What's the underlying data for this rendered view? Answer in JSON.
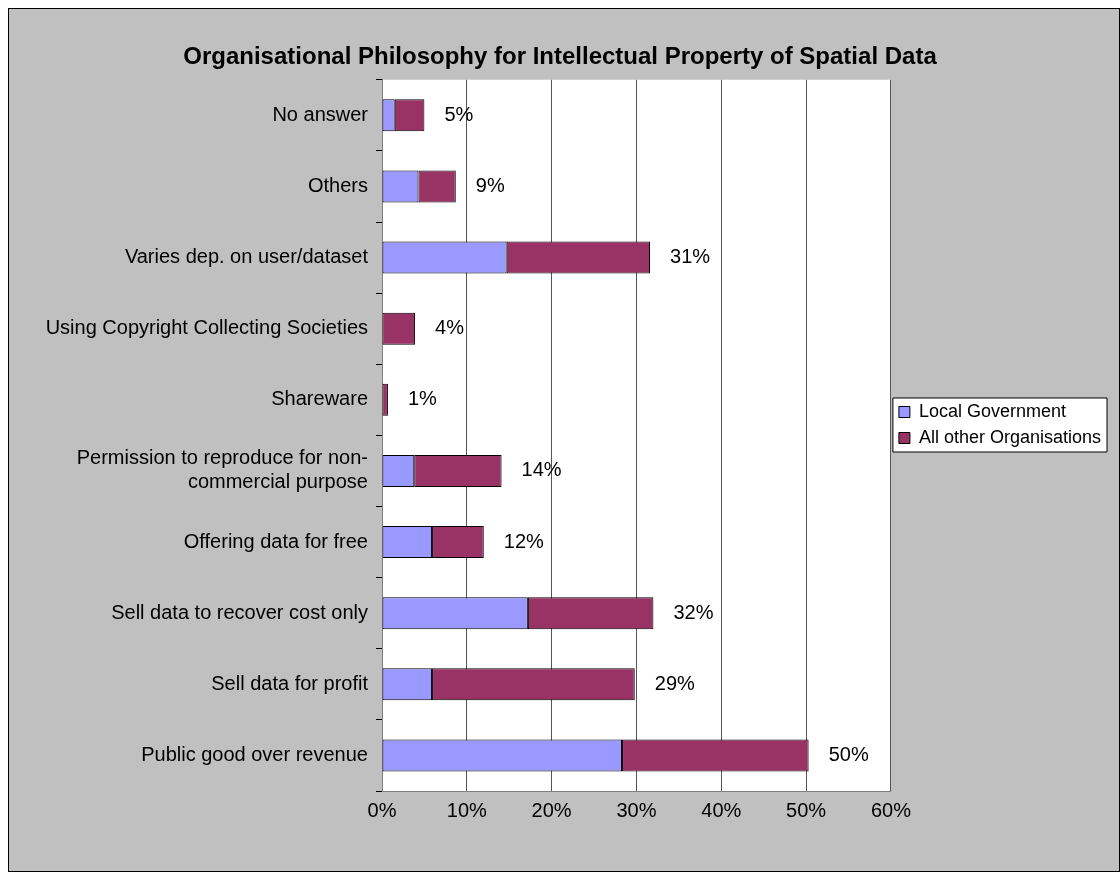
{
  "chart_data": {
    "type": "bar",
    "title": "Organisational Philosophy for Intellectual Property of Spatial Data",
    "orientation": "horizontal",
    "stacked": true,
    "categories": [
      "No answer",
      "Others",
      "Varies dep. on user/dataset",
      "Using Copyright Collecting Societies",
      "Shareware",
      "Permission to reproduce for non-commercial purpose",
      "Offering data for free",
      "Sell data to recover cost only",
      "Sell data for profit",
      "Public good over revenue"
    ],
    "series": [
      {
        "name": "Local Government",
        "color": "#9999ff",
        "values": [
          1.5,
          4.3,
          14.7,
          0,
          0,
          3.8,
          5.9,
          17.2,
          5.9,
          28.3
        ]
      },
      {
        "name": "All other Organisations",
        "color": "#993366",
        "values": [
          3.5,
          4.4,
          16.9,
          3.9,
          0.7,
          10.3,
          6.1,
          14.8,
          23.9,
          22
        ]
      }
    ],
    "totals": [
      "5%",
      "9%",
      "31%",
      "4%",
      "1%",
      "14%",
      "12%",
      "32%",
      "29%",
      "50%"
    ],
    "xlim": [
      0,
      60
    ],
    "xticks": [
      {
        "value": 0,
        "label": "0%"
      },
      {
        "value": 10,
        "label": "10%"
      },
      {
        "value": 20,
        "label": "20%"
      },
      {
        "value": 30,
        "label": "30%"
      },
      {
        "value": 40,
        "label": "40%"
      },
      {
        "value": 50,
        "label": "50%"
      },
      {
        "value": 60,
        "label": "60%"
      }
    ],
    "grid": "x",
    "legend": "right"
  }
}
